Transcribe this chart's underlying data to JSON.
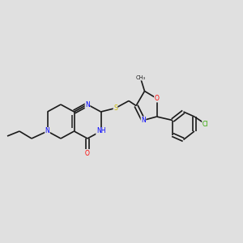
{
  "background_color": "#e0e0e0",
  "fig_width": 3.0,
  "fig_height": 3.0,
  "dpi": 100,
  "atom_colors": {
    "C": "#1a1a1a",
    "N": "#0000ff",
    "O": "#ff0000",
    "S": "#ccbb00",
    "Cl": "#33aa00",
    "NH": "#00aaaa"
  },
  "bond_color": "#1a1a1a",
  "bond_lw": 1.2,
  "dbo": 0.008,
  "font_size": 5.5
}
